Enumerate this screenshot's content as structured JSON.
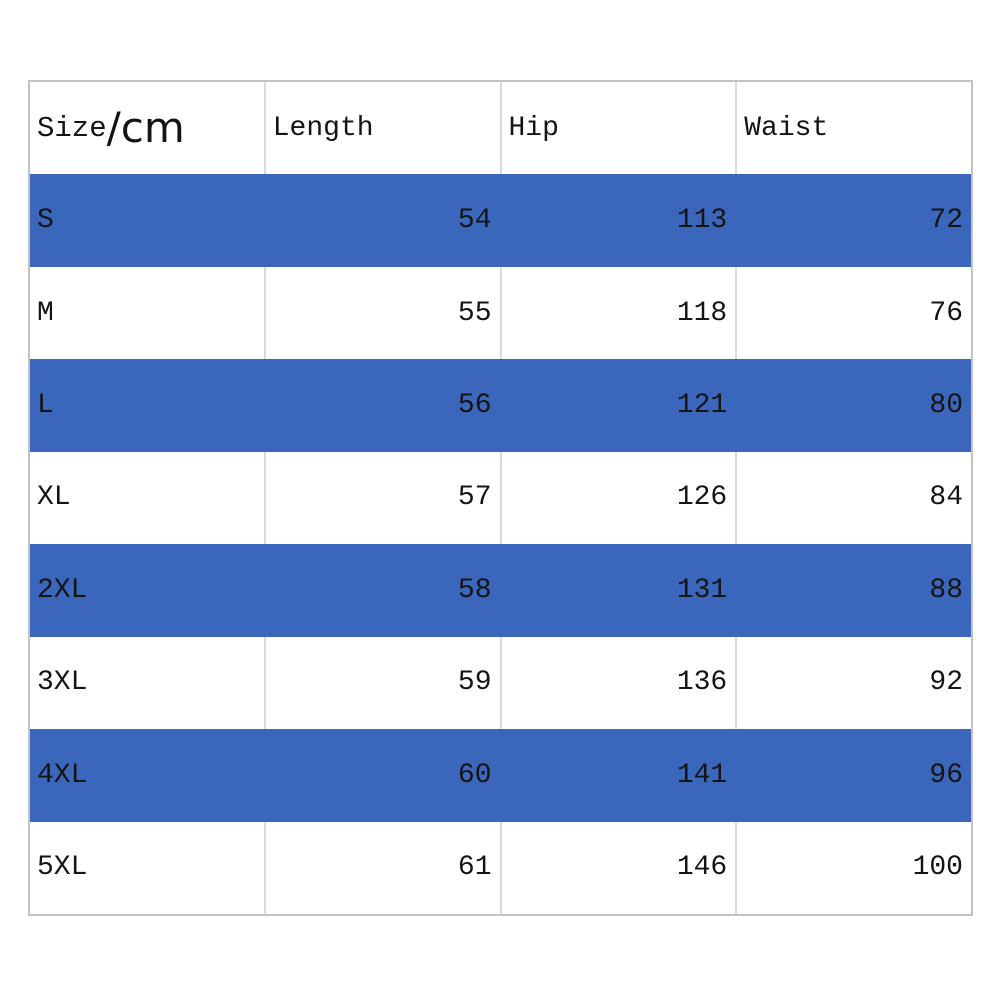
{
  "chart_data": {
    "type": "table",
    "columns": {
      "size": "Size",
      "size_unit": "/cm",
      "length": "Length",
      "hip": "Hip",
      "waist": "Waist"
    },
    "rows": [
      {
        "size": "S",
        "length": 54,
        "hip": 113,
        "waist": 72
      },
      {
        "size": "M",
        "length": 55,
        "hip": 118,
        "waist": 76
      },
      {
        "size": "L",
        "length": 56,
        "hip": 121,
        "waist": 80
      },
      {
        "size": "XL",
        "length": 57,
        "hip": 126,
        "waist": 84
      },
      {
        "size": "2XL",
        "length": 58,
        "hip": 131,
        "waist": 88
      },
      {
        "size": "3XL",
        "length": 59,
        "hip": 136,
        "waist": 92
      },
      {
        "size": "4XL",
        "length": 60,
        "hip": 141,
        "waist": 96
      },
      {
        "size": "5XL",
        "length": 61,
        "hip": 146,
        "waist": 100
      }
    ],
    "highlighted_rows": [
      "S",
      "L",
      "2XL",
      "4XL"
    ],
    "layout_hints": {
      "grid": "column separators visible on white rows only",
      "number_alignment": "right",
      "size_alignment": "left"
    }
  },
  "colors": {
    "highlight_blue": "#3A67BB",
    "outer_border": "#c3c3c3",
    "grid_line": "#dadada",
    "text": "#141414",
    "background": "#ffffff"
  }
}
